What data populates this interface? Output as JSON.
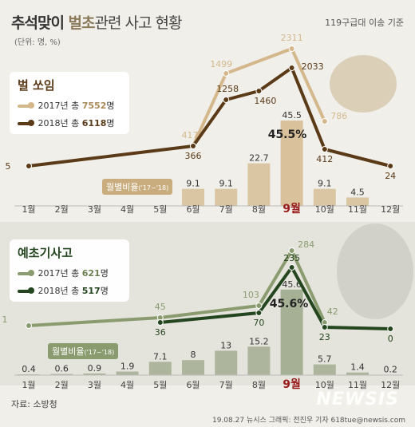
{
  "header": {
    "title_main": "추석맞이 ",
    "title_highlight": "벌초",
    "title_rest": "관련 사고 현황",
    "basis": "119구급대 이송 기준",
    "unit": "(단위: 명, %)"
  },
  "footer": {
    "source": "자료: 소방청",
    "credit": "19.08.27 뉴시스 그래픽: 전진우 기자 618tue@newsis.com",
    "watermark": "NEWSIS"
  },
  "colors": {
    "bee_light": "#d4b88c",
    "bee_dark": "#5a3a17",
    "bee_bar": "#d8c19b",
    "mow_light": "#8a9c6f",
    "mow_dark": "#24461f",
    "mow_bar": "#a6b095",
    "highlight_month": "#9a1b1b"
  },
  "chart_data": [
    {
      "type": "line",
      "title": "벌 쏘임",
      "categories": [
        "1월",
        "2월",
        "3월",
        "4월",
        "5월",
        "6월",
        "7월",
        "8월",
        "9월",
        "10월",
        "11월",
        "12월"
      ],
      "series": [
        {
          "name": "2017년 총 7552명",
          "values": [
            null,
            null,
            null,
            null,
            null,
            417,
            1499,
            null,
            2311,
            786,
            null,
            null
          ]
        },
        {
          "name": "2018년 총 6118명",
          "values": [
            5,
            null,
            null,
            null,
            null,
            366,
            1258,
            1460,
            2033,
            412,
            null,
            24
          ]
        }
      ],
      "bar_series": {
        "name": "월별비율",
        "note": "('17~'18)",
        "values": [
          null,
          null,
          null,
          null,
          null,
          9.1,
          9.1,
          22.7,
          45.5,
          9.1,
          4.5,
          null
        ]
      },
      "highlight": {
        "month": "9월",
        "value": "45.5%"
      },
      "legend": {
        "title": "벌 쏘임",
        "rows": [
          {
            "prefix": "2017년 총 ",
            "num": "7552",
            "suffix": "명"
          },
          {
            "prefix": "2018년 총 ",
            "num": "6118",
            "suffix": "명"
          }
        ]
      },
      "ratio_label": "월별비율",
      "ratio_note": "('17~'18)"
    },
    {
      "type": "line",
      "title": "예초기사고",
      "categories": [
        "1월",
        "2월",
        "3월",
        "4월",
        "5월",
        "6월",
        "7월",
        "8월",
        "9월",
        "10월",
        "11월",
        "12월"
      ],
      "series": [
        {
          "name": "2017년 총 621명",
          "values": [
            1,
            null,
            null,
            null,
            45,
            null,
            null,
            103,
            284,
            42,
            null,
            null
          ]
        },
        {
          "name": "2018년 총 517명",
          "values": [
            null,
            null,
            null,
            null,
            36,
            null,
            null,
            70,
            235,
            23,
            null,
            0
          ]
        }
      ],
      "bar_series": {
        "name": "월별비율",
        "note": "('17~'18)",
        "values": [
          0.4,
          0.6,
          0.9,
          1.9,
          7.1,
          8,
          13,
          15.2,
          45.6,
          5.7,
          1.4,
          0.2
        ]
      },
      "highlight": {
        "month": "9월",
        "value": "45.6%"
      },
      "legend": {
        "title": "예초기사고",
        "rows": [
          {
            "prefix": "2017년 총 ",
            "num": "621",
            "suffix": "명"
          },
          {
            "prefix": "2018년 총 ",
            "num": "517",
            "suffix": "명"
          }
        ]
      },
      "ratio_label": "월별비율",
      "ratio_note": "('17~'18)"
    }
  ]
}
